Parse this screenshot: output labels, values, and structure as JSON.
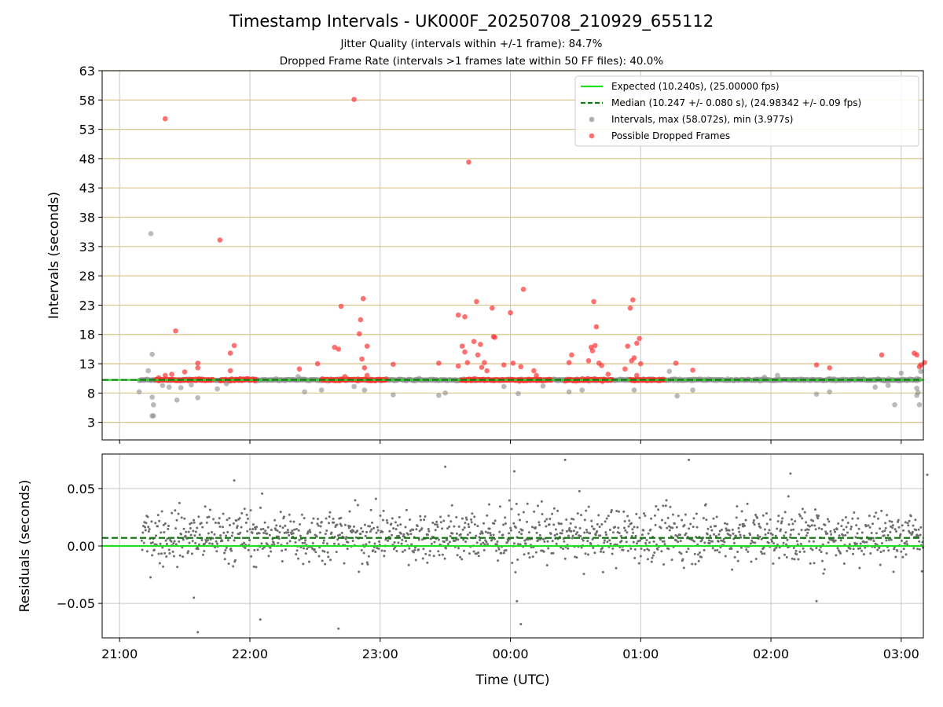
{
  "header": {
    "title": "Timestamp Intervals - UK000F_20250708_210929_655112",
    "subtitle_1": "Jitter Quality (intervals within +/-1 frame): 84.7%",
    "subtitle_2": "Dropped Frame Rate (intervals >1 frames late within 50 FF files): 40.0%"
  },
  "chart_data": [
    {
      "type": "scatter",
      "ylabel": "Intervals (seconds)",
      "ylim": [
        0,
        63
      ],
      "yticks": [
        3,
        8,
        13,
        18,
        23,
        28,
        33,
        38,
        43,
        48,
        53,
        58,
        63
      ],
      "xlim_hours": [
        20.866,
        27.17
      ],
      "hlines": [
        {
          "name": "Expected (10.240s), (25.00000 fps)",
          "y": 10.24,
          "color": "#22e01f",
          "style": "solid"
        },
        {
          "name": "Median (10.247 +/- 0.080 s), (24.98342 +/- 0.09 fps)",
          "y": 10.247,
          "color": "#117a11",
          "style": "dashed"
        }
      ],
      "series": [
        {
          "name": "Intervals, max (58.072s), min (3.977s)",
          "color": "#8c8c8c",
          "points": [
            [
              21.15,
              8.2
            ],
            [
              21.22,
              11.8
            ],
            [
              21.24,
              35.2
            ],
            [
              21.25,
              14.6
            ],
            [
              21.25,
              7.3
            ],
            [
              21.26,
              6.0
            ],
            [
              21.26,
              4.1
            ],
            [
              21.25,
              4.1
            ],
            [
              21.33,
              9.3
            ],
            [
              21.38,
              9.0
            ],
            [
              21.44,
              6.8
            ],
            [
              21.47,
              8.9
            ],
            [
              21.55,
              9.4
            ],
            [
              21.6,
              7.2
            ],
            [
              21.75,
              8.7
            ],
            [
              21.82,
              9.6
            ],
            [
              22.37,
              10.8
            ],
            [
              22.42,
              8.2
            ],
            [
              22.55,
              8.5
            ],
            [
              22.8,
              9.1
            ],
            [
              22.88,
              8.5
            ],
            [
              23.1,
              7.7
            ],
            [
              23.3,
              10.5
            ],
            [
              23.45,
              7.6
            ],
            [
              23.5,
              8.0
            ],
            [
              23.95,
              9.1
            ],
            [
              24.06,
              7.9
            ],
            [
              24.25,
              9.2
            ],
            [
              24.45,
              8.2
            ],
            [
              24.55,
              8.5
            ],
            [
              24.95,
              8.5
            ],
            [
              25.22,
              11.7
            ],
            [
              25.28,
              7.5
            ],
            [
              25.4,
              8.5
            ],
            [
              25.95,
              10.7
            ],
            [
              26.05,
              11.0
            ],
            [
              26.35,
              7.8
            ],
            [
              26.45,
              8.2
            ],
            [
              26.8,
              9.0
            ],
            [
              26.9,
              9.3
            ],
            [
              26.95,
              6.0
            ],
            [
              27.0,
              11.4
            ],
            [
              27.12,
              8.8
            ],
            [
              27.12,
              7.6
            ],
            [
              27.13,
              8.1
            ],
            [
              27.14,
              6.0
            ],
            [
              27.15,
              11.7
            ]
          ]
        },
        {
          "name": "Possible Dropped Frames",
          "color": "#ff3333",
          "points": [
            [
              21.35,
              54.8
            ],
            [
              21.43,
              18.6
            ],
            [
              21.35,
              11.0
            ],
            [
              21.3,
              10.6
            ],
            [
              21.4,
              11.2
            ],
            [
              21.5,
              11.6
            ],
            [
              21.6,
              13.1
            ],
            [
              21.6,
              12.3
            ],
            [
              21.77,
              34.1
            ],
            [
              21.85,
              14.8
            ],
            [
              21.88,
              16.1
            ],
            [
              21.85,
              11.8
            ],
            [
              22.52,
              13.0
            ],
            [
              22.38,
              12.1
            ],
            [
              22.65,
              15.8
            ],
            [
              22.68,
              15.5
            ],
            [
              22.7,
              22.8
            ],
            [
              22.73,
              10.8
            ],
            [
              22.8,
              58.1
            ],
            [
              22.84,
              18.1
            ],
            [
              22.85,
              20.5
            ],
            [
              22.87,
              24.1
            ],
            [
              22.86,
              13.8
            ],
            [
              22.9,
              16.0
            ],
            [
              22.88,
              12.3
            ],
            [
              22.9,
              11.0
            ],
            [
              23.1,
              12.9
            ],
            [
              23.45,
              13.1
            ],
            [
              23.6,
              21.3
            ],
            [
              23.63,
              16.0
            ],
            [
              23.65,
              15.0
            ],
            [
              23.67,
              13.2
            ],
            [
              23.65,
              21.0
            ],
            [
              23.68,
              47.4
            ],
            [
              23.72,
              16.8
            ],
            [
              23.74,
              23.6
            ],
            [
              23.75,
              14.5
            ],
            [
              23.77,
              16.3
            ],
            [
              23.78,
              12.4
            ],
            [
              23.8,
              13.2
            ],
            [
              23.82,
              11.8
            ],
            [
              23.86,
              22.5
            ],
            [
              23.87,
              17.6
            ],
            [
              23.88,
              17.5
            ],
            [
              23.6,
              12.6
            ],
            [
              23.95,
              12.8
            ],
            [
              24.0,
              21.7
            ],
            [
              24.02,
              13.1
            ],
            [
              24.1,
              25.7
            ],
            [
              24.08,
              12.5
            ],
            [
              24.18,
              11.8
            ],
            [
              24.2,
              11.0
            ],
            [
              24.45,
              13.2
            ],
            [
              24.47,
              14.5
            ],
            [
              24.6,
              13.5
            ],
            [
              24.62,
              15.8
            ],
            [
              24.63,
              15.2
            ],
            [
              24.65,
              16.1
            ],
            [
              24.64,
              23.6
            ],
            [
              24.66,
              19.3
            ],
            [
              24.68,
              13.1
            ],
            [
              24.7,
              12.7
            ],
            [
              24.75,
              11.2
            ],
            [
              24.88,
              12.1
            ],
            [
              24.9,
              16.0
            ],
            [
              24.92,
              22.5
            ],
            [
              24.93,
              13.5
            ],
            [
              24.94,
              23.9
            ],
            [
              24.95,
              14.0
            ],
            [
              24.97,
              16.5
            ],
            [
              24.99,
              17.3
            ],
            [
              25.0,
              13.0
            ],
            [
              24.97,
              11.0
            ],
            [
              25.27,
              13.1
            ],
            [
              25.4,
              11.9
            ],
            [
              26.35,
              12.8
            ],
            [
              26.45,
              12.3
            ],
            [
              26.85,
              14.5
            ],
            [
              27.1,
              14.8
            ],
            [
              27.12,
              14.5
            ],
            [
              27.15,
              12.8
            ],
            [
              27.18,
              13.2
            ],
            [
              27.14,
              12.5
            ]
          ]
        }
      ],
      "legend_placement": "top-right"
    },
    {
      "type": "scatter",
      "ylabel": "Residuals (seconds)",
      "xlabel": "Time (UTC)",
      "ylim": [
        -0.08,
        0.08
      ],
      "yticks": [
        0.05,
        0.0,
        -0.05
      ],
      "ytick_labels": [
        "0.05",
        "0.00",
        "−0.05"
      ],
      "xticks_hours": [
        21,
        22,
        23,
        24,
        25,
        26,
        27
      ],
      "xtick_labels": [
        "21:00",
        "22:00",
        "23:00",
        "00:00",
        "01:00",
        "02:00",
        "03:00"
      ],
      "xlim_hours": [
        20.866,
        27.17
      ],
      "hlines": [
        {
          "name": "Expected",
          "y": 0.0,
          "color": "#22e01f",
          "style": "solid"
        },
        {
          "name": "Median",
          "y": 0.007,
          "color": "#117a11",
          "style": "dashed"
        }
      ],
      "series": [
        {
          "name": "Residuals",
          "color": "#6e6e6e",
          "points": [
            [
              21.57,
              -0.045
            ],
            [
              21.6,
              -0.075
            ],
            [
              22.08,
              -0.064
            ],
            [
              22.68,
              -0.072
            ],
            [
              24.03,
              0.065
            ],
            [
              24.05,
              -0.048
            ],
            [
              24.08,
              -0.068
            ],
            [
              24.42,
              0.075
            ],
            [
              25.37,
              0.075
            ],
            [
              26.15,
              0.063
            ],
            [
              26.35,
              -0.048
            ],
            [
              27.2,
              0.062
            ],
            [
              23.5,
              0.069
            ],
            [
              21.88,
              0.057
            ]
          ]
        }
      ],
      "series_note": "Dense cloud of residuals (~0.01 +/- 0.02 s) spanning 21:10 to 03:10"
    }
  ]
}
